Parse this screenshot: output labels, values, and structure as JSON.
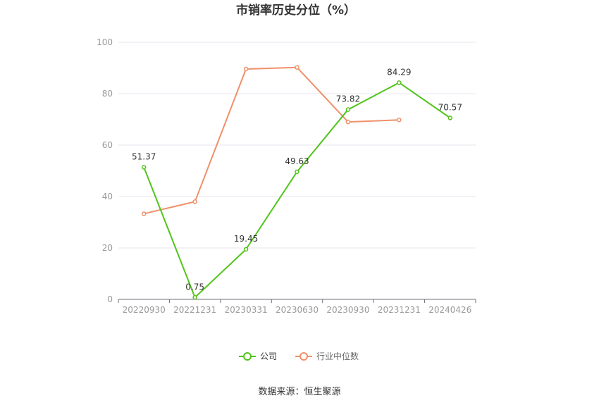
{
  "chart_data": {
    "type": "line",
    "title": "市销率历史分位（%）",
    "categories": [
      "20220930",
      "20221231",
      "20230331",
      "20230630",
      "20230930",
      "20231231",
      "20240426"
    ],
    "series": [
      {
        "name": "公司",
        "color": "#52c41a",
        "values": [
          51.37,
          0.75,
          19.45,
          49.63,
          73.82,
          84.29,
          70.57
        ],
        "show_labels": true
      },
      {
        "name": "行业中位数",
        "color": "#f0906a",
        "values": [
          33.3,
          38.0,
          89.6,
          90.2,
          69.0,
          69.8,
          null
        ],
        "show_labels": false
      }
    ],
    "ylim": [
      0,
      100
    ],
    "yticks": [
      0,
      20,
      40,
      60,
      80,
      100
    ],
    "grid": true,
    "legend": "bottom"
  },
  "source": "数据来源：恒生聚源"
}
